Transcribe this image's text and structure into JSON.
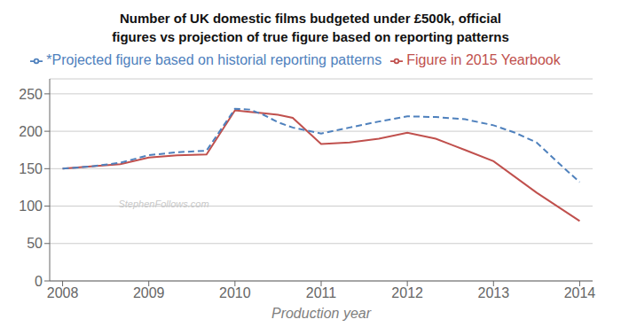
{
  "chart_data": {
    "type": "line",
    "title": "Number of UK domestic films budgeted under £500k, official",
    "subtitle": "figures vs projection of true figure based on reporting patterns",
    "xlabel": "Production year",
    "xlim": [
      2007.85,
      2014.15
    ],
    "xticks": [
      2008,
      2009,
      2010,
      2011,
      2012,
      2013,
      2014
    ],
    "ylim": [
      0,
      270
    ],
    "yticks": [
      0,
      50,
      100,
      150,
      200,
      250
    ],
    "grid": true,
    "legend": "top",
    "annotations": [
      {
        "text": "StephenFollows.com"
      }
    ],
    "series": [
      {
        "name": "Figure in 2015 Yearbook",
        "color": "#c0504d",
        "line_style": "solid",
        "x": [
          2008,
          2008.33,
          2008.67,
          2009,
          2009.33,
          2009.67,
          2010,
          2010.17,
          2010.33,
          2010.5,
          2010.67,
          2011,
          2011.33,
          2011.67,
          2012,
          2012.33,
          2012.67,
          2013,
          2013.5,
          2014
        ],
        "values": [
          150,
          153,
          156,
          165,
          168,
          169,
          228,
          226,
          224,
          222,
          218,
          183,
          185,
          190,
          198,
          190,
          175,
          160,
          118,
          80
        ]
      },
      {
        "name": "*Projected figure based on historial reporting patterns",
        "color": "#4f81bd",
        "line_style": "dashed",
        "x": [
          2008,
          2008.33,
          2008.67,
          2009,
          2009.33,
          2009.67,
          2010,
          2010.17,
          2010.33,
          2010.5,
          2010.67,
          2011,
          2011.33,
          2011.67,
          2012,
          2012.33,
          2012.67,
          2013,
          2013.25,
          2013.5,
          2013.75,
          2014
        ],
        "values": [
          150,
          153,
          158,
          168,
          172,
          174,
          230,
          229,
          222,
          212,
          205,
          197,
          205,
          213,
          220,
          219,
          216,
          208,
          198,
          185,
          158,
          132
        ]
      }
    ]
  }
}
